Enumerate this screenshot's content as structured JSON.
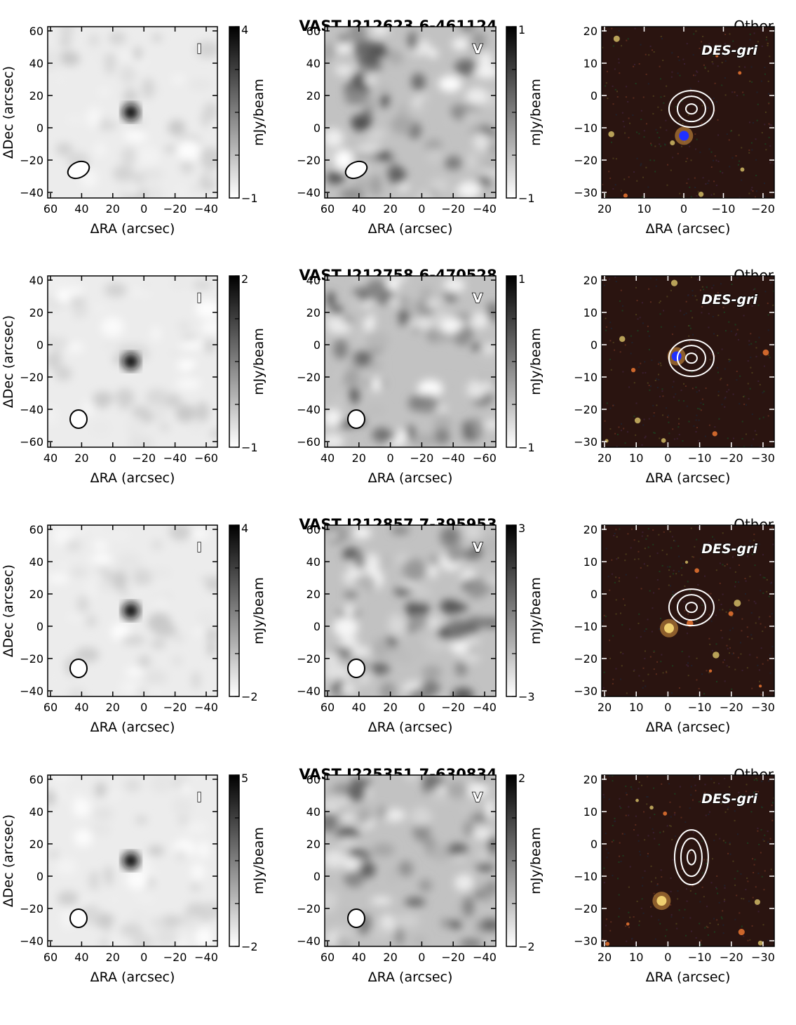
{
  "figure": {
    "rows": [
      {
        "source_name": "VAST J212623.6-461124",
        "category": "Other",
        "panels": [
          {
            "type": "stokes",
            "label": "I",
            "x_ticks": [
              "60",
              "40",
              "20",
              "0",
              "−20",
              "−40"
            ],
            "y_ticks": [
              "60",
              "40",
              "20",
              "0",
              "−20",
              "−40"
            ],
            "cbar_max": "4",
            "cbar_min": "−1",
            "cbar_label": "mJy/beam",
            "x_label": "ΔRA (arcsec)",
            "y_label": "ΔDec (arcsec)"
          },
          {
            "type": "stokes",
            "label": "V",
            "x_ticks": [
              "60",
              "40",
              "20",
              "0",
              "−20",
              "−40"
            ],
            "y_ticks": [
              "60",
              "40",
              "20",
              "0",
              "−20",
              "−40"
            ],
            "cbar_max": "1",
            "cbar_min": "−1",
            "cbar_label": "mJy/beam",
            "x_label": "ΔRA (arcsec)"
          },
          {
            "type": "optical",
            "label": "DES-gri",
            "x_ticks": [
              "20",
              "10",
              "0",
              "−10",
              "−20"
            ],
            "y_ticks": [
              "20",
              "10",
              "0",
              "−10",
              "−20",
              "−30"
            ],
            "x_label": "ΔRA (arcsec)"
          }
        ]
      },
      {
        "source_name": "VAST J212758.6-470528",
        "category": "Other",
        "panels": [
          {
            "type": "stokes",
            "label": "I",
            "x_ticks": [
              "40",
              "20",
              "0",
              "−20",
              "−40",
              "−60"
            ],
            "y_ticks": [
              "40",
              "20",
              "0",
              "−20",
              "−40",
              "−60"
            ],
            "cbar_max": "2",
            "cbar_min": "−1",
            "cbar_label": "mJy/beam",
            "x_label": "ΔRA (arcsec)",
            "y_label": "ΔDec (arcsec)"
          },
          {
            "type": "stokes",
            "label": "V",
            "x_ticks": [
              "40",
              "20",
              "0",
              "−20",
              "−40",
              "−60"
            ],
            "y_ticks": [
              "40",
              "20",
              "0",
              "−20",
              "−40",
              "−60"
            ],
            "cbar_max": "1",
            "cbar_min": "−1",
            "cbar_label": "mJy/beam",
            "x_label": "ΔRA (arcsec)"
          },
          {
            "type": "optical",
            "label": "DES-gri",
            "x_ticks": [
              "20",
              "10",
              "0",
              "−10",
              "−20",
              "−30"
            ],
            "y_ticks": [
              "20",
              "10",
              "0",
              "−10",
              "−20",
              "−30"
            ],
            "x_label": "ΔRA (arcsec)"
          }
        ]
      },
      {
        "source_name": "VAST J212857.7-395953",
        "category": "Other",
        "panels": [
          {
            "type": "stokes",
            "label": "I",
            "x_ticks": [
              "60",
              "40",
              "20",
              "0",
              "−20",
              "−40"
            ],
            "y_ticks": [
              "60",
              "40",
              "20",
              "0",
              "−20",
              "−40"
            ],
            "cbar_max": "4",
            "cbar_min": "−2",
            "cbar_label": "mJy/beam",
            "x_label": "ΔRA (arcsec)",
            "y_label": "ΔDec (arcsec)"
          },
          {
            "type": "stokes",
            "label": "V",
            "x_ticks": [
              "60",
              "40",
              "20",
              "0",
              "−20",
              "−40"
            ],
            "y_ticks": [
              "60",
              "40",
              "20",
              "0",
              "−20",
              "−40"
            ],
            "cbar_max": "3",
            "cbar_min": "−3",
            "cbar_label": "mJy/beam",
            "x_label": "ΔRA (arcsec)"
          },
          {
            "type": "optical",
            "label": "DES-gri",
            "x_ticks": [
              "20",
              "10",
              "0",
              "−10",
              "−20",
              "−30"
            ],
            "y_ticks": [
              "20",
              "10",
              "0",
              "−10",
              "−20",
              "−30"
            ],
            "x_label": "ΔRA (arcsec)"
          }
        ]
      },
      {
        "source_name": "VAST J225351.7-630834",
        "category": "Other",
        "panels": [
          {
            "type": "stokes",
            "label": "I",
            "x_ticks": [
              "60",
              "40",
              "20",
              "0",
              "−20",
              "−40"
            ],
            "y_ticks": [
              "60",
              "40",
              "20",
              "0",
              "−20",
              "−40"
            ],
            "cbar_max": "5",
            "cbar_min": "−2",
            "cbar_label": "mJy/beam",
            "x_label": "ΔRA (arcsec)",
            "y_label": "ΔDec (arcsec)"
          },
          {
            "type": "stokes",
            "label": "V",
            "x_ticks": [
              "60",
              "40",
              "20",
              "0",
              "−20",
              "−40"
            ],
            "y_ticks": [
              "60",
              "40",
              "20",
              "0",
              "−20",
              "−40"
            ],
            "cbar_max": "2",
            "cbar_min": "−2",
            "cbar_label": "mJy/beam",
            "x_label": "ΔRA (arcsec)"
          },
          {
            "type": "optical",
            "label": "DES-gri",
            "x_ticks": [
              "20",
              "10",
              "0",
              "−10",
              "−20",
              "−30"
            ],
            "y_ticks": [
              "20",
              "10",
              "0",
              "−10",
              "−20",
              "−30"
            ],
            "x_label": "ΔRA (arcsec)"
          }
        ]
      }
    ]
  }
}
